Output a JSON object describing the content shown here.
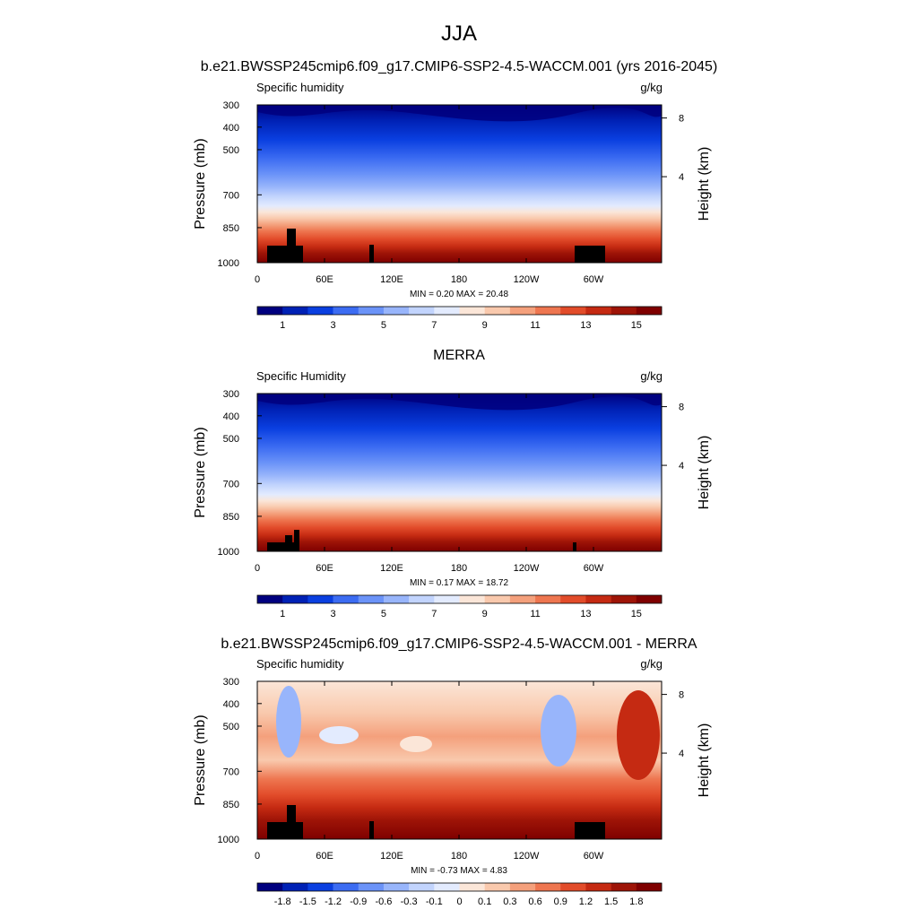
{
  "figure": {
    "title": "JJA",
    "subtitle_top": "b.e21.BWSSP245cmip6.f09_g17.CMIP6-SSP2-4.5-WACCM.001 (yrs 2016-2045)",
    "subtitle_mid": "MERRA",
    "subtitle_bottom": "b.e21.BWSSP245cmip6.f09_g17.CMIP6-SSP2-4.5-WACCM.001 - MERRA"
  },
  "chart_data": [
    {
      "type": "heatmap",
      "left_label": "Specific humidity",
      "right_label": "g/kg",
      "ylabel": "Pressure (mb)",
      "ylabel_right": "Height (km)",
      "x_ticks": [
        "0",
        "60E",
        "120E",
        "180",
        "120W",
        "60W"
      ],
      "y_ticks": [
        "300",
        "400",
        "500",
        "700",
        "850",
        "1000"
      ],
      "y_right_ticks": [
        "8",
        "4"
      ],
      "stats": "MIN =   0.20  MAX =  20.48",
      "levels": [
        "1",
        "3",
        "5",
        "7",
        "9",
        "11",
        "13",
        "15"
      ],
      "colors": [
        "#00007f",
        "#0021b5",
        "#0a3fe0",
        "#3c6cf2",
        "#6b93f8",
        "#98b5fb",
        "#c2d4fd",
        "#e3ebfe",
        "#fbe6d8",
        "#f9c9ad",
        "#f4a07c",
        "#ee7650",
        "#e24c2a",
        "#c52a12",
        "#9e1407",
        "#7f0000"
      ]
    },
    {
      "type": "heatmap",
      "left_label": "Specific Humidity",
      "right_label": "g/kg",
      "ylabel": "Pressure (mb)",
      "ylabel_right": "Height (km)",
      "x_ticks": [
        "0",
        "60E",
        "120E",
        "180",
        "120W",
        "60W"
      ],
      "y_ticks": [
        "300",
        "400",
        "500",
        "700",
        "850",
        "1000"
      ],
      "y_right_ticks": [
        "8",
        "4"
      ],
      "stats": "MIN =   0.17  MAX =  18.72",
      "levels": [
        "1",
        "3",
        "5",
        "7",
        "9",
        "11",
        "13",
        "15"
      ],
      "colors": [
        "#00007f",
        "#0021b5",
        "#0a3fe0",
        "#3c6cf2",
        "#6b93f8",
        "#98b5fb",
        "#c2d4fd",
        "#e3ebfe",
        "#fbe6d8",
        "#f9c9ad",
        "#f4a07c",
        "#ee7650",
        "#e24c2a",
        "#c52a12",
        "#9e1407",
        "#7f0000"
      ]
    },
    {
      "type": "heatmap",
      "left_label": "Specific humidity",
      "right_label": "g/kg",
      "ylabel": "Pressure (mb)",
      "ylabel_right": "Height (km)",
      "x_ticks": [
        "0",
        "60E",
        "120E",
        "180",
        "120W",
        "60W"
      ],
      "y_ticks": [
        "300",
        "400",
        "500",
        "700",
        "850",
        "1000"
      ],
      "y_right_ticks": [
        "8",
        "4"
      ],
      "stats": "MIN =  -0.73  MAX =   4.83",
      "levels": [
        "-1.8",
        "-1.5",
        "-1.2",
        "-0.9",
        "-0.6",
        "-0.3",
        "-0.1",
        "0",
        "0.1",
        "0.3",
        "0.6",
        "0.9",
        "1.2",
        "1.5",
        "1.8"
      ],
      "colors": [
        "#00007f",
        "#0021b5",
        "#0a3fe0",
        "#3c6cf2",
        "#6b93f8",
        "#98b5fb",
        "#c2d4fd",
        "#e3ebfe",
        "#fbe6d8",
        "#f9c9ad",
        "#f4a07c",
        "#ee7650",
        "#e24c2a",
        "#c52a12",
        "#9e1407",
        "#7f0000"
      ]
    }
  ]
}
